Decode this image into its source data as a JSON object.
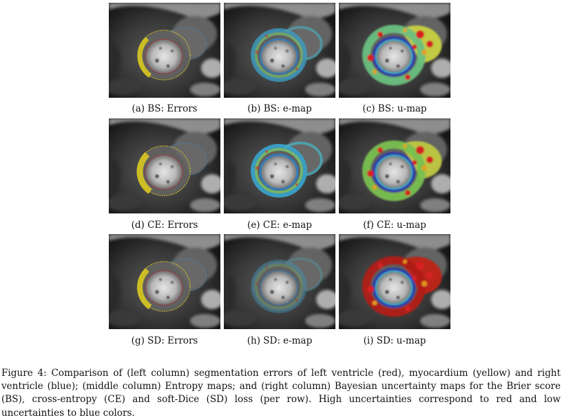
{
  "figure": {
    "rows": [
      {
        "loss": "BS",
        "panels": [
          {
            "caption": "(a) BS: Errors",
            "kind": "errors"
          },
          {
            "caption": "(b) BS: e-map",
            "kind": "emap"
          },
          {
            "caption": "(c) BS: u-map",
            "kind": "umap"
          }
        ]
      },
      {
        "loss": "CE",
        "panels": [
          {
            "caption": "(d) CE: Errors",
            "kind": "errors"
          },
          {
            "caption": "(e) CE: e-map",
            "kind": "emap"
          },
          {
            "caption": "(f) CE: u-map",
            "kind": "umap"
          }
        ]
      },
      {
        "loss": "SD",
        "panels": [
          {
            "caption": "(g) SD: Errors",
            "kind": "errors"
          },
          {
            "caption": "(h) SD: e-map",
            "kind": "emap"
          },
          {
            "caption": "(i) SD: u-map",
            "kind": "umap"
          }
        ]
      }
    ],
    "caption_text": "Figure 4: Comparison of (left column) segmentation errors of left ventricle (red), myocardium (yellow) and right ventricle (blue); (middle column) Entropy maps; and (right column) Bayesian uncertainty maps for the Brier score (BS), cross-entropy (CE) and soft-Dice (SD) loss (per row). High uncertainties correspond to red and low uncertainties to blue colors.",
    "colors": {
      "left_ventricle_error": "#c0202a",
      "myocardium_error": "#d8c820",
      "right_ventricle_error": "#3a8fd0",
      "high_uncertainty": "#d42020",
      "low_uncertainty": "#2030c0"
    }
  }
}
